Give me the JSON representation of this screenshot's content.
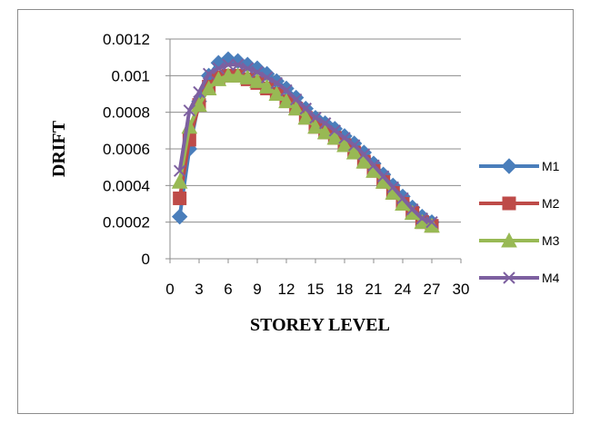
{
  "chart_data": {
    "type": "line",
    "title": "",
    "xlabel": "STOREY LEVEL",
    "ylabel": "DRIFT",
    "xlim": [
      0,
      30
    ],
    "ylim": [
      0,
      0.0012
    ],
    "x_ticks": [
      "0",
      "3",
      "6",
      "9",
      "12",
      "15",
      "18",
      "21",
      "24",
      "27",
      "30"
    ],
    "y_ticks": [
      "0",
      "0.0002",
      "0.0004",
      "0.0006",
      "0.0008",
      "0.001",
      "0.0012"
    ],
    "grid": "horizontal",
    "legend_position": "right",
    "x": [
      1,
      2,
      3,
      4,
      5,
      6,
      7,
      8,
      9,
      10,
      11,
      12,
      13,
      14,
      15,
      16,
      17,
      18,
      19,
      20,
      21,
      22,
      23,
      24,
      25,
      26,
      27
    ],
    "series": [
      {
        "name": "M1",
        "color": "#4a7ebb",
        "marker": "diamond",
        "values": [
          0.00023,
          0.0006,
          0.00086,
          0.001,
          0.00107,
          0.00109,
          0.00108,
          0.00106,
          0.00104,
          0.00101,
          0.00097,
          0.00093,
          0.00088,
          0.00082,
          0.00077,
          0.00074,
          0.00071,
          0.00067,
          0.00063,
          0.00058,
          0.00052,
          0.00046,
          0.0004,
          0.00034,
          0.00028,
          0.00023,
          0.0002
        ]
      },
      {
        "name": "M2",
        "color": "#be4b48",
        "marker": "square",
        "values": [
          0.00033,
          0.00065,
          0.00084,
          0.00094,
          0.00099,
          0.001,
          0.001,
          0.00098,
          0.00096,
          0.00093,
          0.0009,
          0.00086,
          0.00082,
          0.00077,
          0.00072,
          0.00069,
          0.00066,
          0.00062,
          0.00058,
          0.00053,
          0.00048,
          0.00042,
          0.00036,
          0.0003,
          0.00025,
          0.0002,
          0.00018
        ]
      },
      {
        "name": "M3",
        "color": "#98b954",
        "marker": "triangle",
        "values": [
          0.00042,
          0.00072,
          0.00084,
          0.00093,
          0.00098,
          0.001,
          0.001,
          0.00099,
          0.00097,
          0.00094,
          0.0009,
          0.00086,
          0.00082,
          0.00077,
          0.00072,
          0.00069,
          0.00066,
          0.00062,
          0.00058,
          0.00053,
          0.00048,
          0.00042,
          0.00036,
          0.0003,
          0.00025,
          0.0002,
          0.00018
        ]
      },
      {
        "name": "M4",
        "color": "#7d60a0",
        "marker": "x",
        "values": [
          0.00048,
          0.00081,
          0.00091,
          0.00101,
          0.00104,
          0.00106,
          0.00106,
          0.00104,
          0.00102,
          0.00099,
          0.00096,
          0.00092,
          0.00087,
          0.00082,
          0.00077,
          0.00074,
          0.0007,
          0.00066,
          0.00062,
          0.00057,
          0.00051,
          0.00045,
          0.00039,
          0.00033,
          0.00027,
          0.00022,
          0.0002
        ]
      }
    ]
  }
}
